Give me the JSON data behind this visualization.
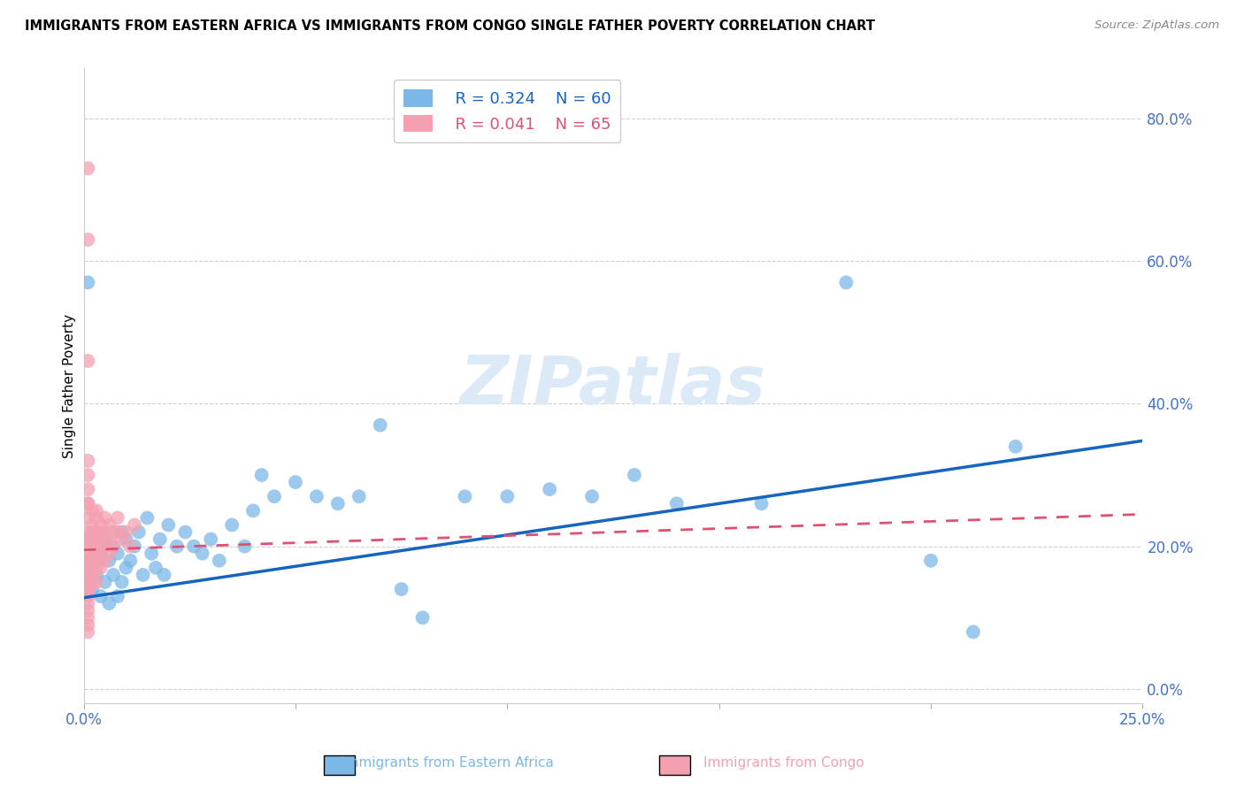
{
  "title": "IMMIGRANTS FROM EASTERN AFRICA VS IMMIGRANTS FROM CONGO SINGLE FATHER POVERTY CORRELATION CHART",
  "source": "Source: ZipAtlas.com",
  "ylabel": "Single Father Poverty",
  "right_yticks": [
    0.0,
    0.2,
    0.4,
    0.6,
    0.8
  ],
  "right_yticklabels": [
    "0.0%",
    "20.0%",
    "40.0%",
    "60.0%",
    "80.0%"
  ],
  "xlim": [
    0.0,
    0.25
  ],
  "ylim": [
    -0.02,
    0.87
  ],
  "series1_label": "Immigrants from Eastern Africa",
  "series1_R": "0.324",
  "series1_N": "60",
  "series1_color": "#7bb8e8",
  "series1_trend_color": "#1565c0",
  "series2_label": "Immigrants from Congo",
  "series2_R": "0.041",
  "series2_N": "65",
  "series2_color": "#f4a0b0",
  "series2_trend_color": "#e05070",
  "watermark": "ZIPatlas",
  "eastern_africa_x": [
    0.001,
    0.001,
    0.002,
    0.002,
    0.003,
    0.003,
    0.004,
    0.004,
    0.005,
    0.005,
    0.006,
    0.006,
    0.007,
    0.007,
    0.008,
    0.008,
    0.009,
    0.009,
    0.01,
    0.01,
    0.011,
    0.012,
    0.013,
    0.014,
    0.015,
    0.016,
    0.017,
    0.018,
    0.019,
    0.02,
    0.022,
    0.024,
    0.026,
    0.028,
    0.03,
    0.032,
    0.035,
    0.038,
    0.04,
    0.042,
    0.045,
    0.05,
    0.055,
    0.06,
    0.065,
    0.07,
    0.075,
    0.08,
    0.09,
    0.1,
    0.11,
    0.12,
    0.13,
    0.14,
    0.16,
    0.18,
    0.2,
    0.21,
    0.22,
    0.001
  ],
  "eastern_africa_y": [
    0.18,
    0.15,
    0.17,
    0.14,
    0.2,
    0.16,
    0.19,
    0.13,
    0.21,
    0.15,
    0.18,
    0.12,
    0.2,
    0.16,
    0.19,
    0.13,
    0.22,
    0.15,
    0.21,
    0.17,
    0.18,
    0.2,
    0.22,
    0.16,
    0.24,
    0.19,
    0.17,
    0.21,
    0.16,
    0.23,
    0.2,
    0.22,
    0.2,
    0.19,
    0.21,
    0.18,
    0.23,
    0.2,
    0.25,
    0.3,
    0.27,
    0.29,
    0.27,
    0.26,
    0.27,
    0.37,
    0.14,
    0.1,
    0.27,
    0.27,
    0.28,
    0.27,
    0.3,
    0.26,
    0.26,
    0.57,
    0.18,
    0.08,
    0.34,
    0.57
  ],
  "congo_x": [
    0.001,
    0.001,
    0.001,
    0.001,
    0.001,
    0.001,
    0.001,
    0.001,
    0.001,
    0.001,
    0.001,
    0.001,
    0.001,
    0.001,
    0.001,
    0.001,
    0.001,
    0.001,
    0.001,
    0.001,
    0.002,
    0.002,
    0.002,
    0.002,
    0.002,
    0.002,
    0.002,
    0.002,
    0.002,
    0.002,
    0.003,
    0.003,
    0.003,
    0.003,
    0.003,
    0.003,
    0.003,
    0.003,
    0.003,
    0.004,
    0.004,
    0.004,
    0.004,
    0.004,
    0.004,
    0.005,
    0.005,
    0.005,
    0.005,
    0.006,
    0.006,
    0.006,
    0.007,
    0.007,
    0.008,
    0.008,
    0.009,
    0.01,
    0.011,
    0.012,
    0.001,
    0.001,
    0.001,
    0.001,
    0.001
  ],
  "congo_y": [
    0.73,
    0.63,
    0.46,
    0.2,
    0.18,
    0.16,
    0.14,
    0.12,
    0.1,
    0.08,
    0.22,
    0.19,
    0.17,
    0.15,
    0.21,
    0.24,
    0.13,
    0.11,
    0.09,
    0.26,
    0.25,
    0.22,
    0.19,
    0.17,
    0.15,
    0.2,
    0.18,
    0.23,
    0.16,
    0.21,
    0.24,
    0.21,
    0.19,
    0.17,
    0.22,
    0.2,
    0.18,
    0.25,
    0.15,
    0.23,
    0.21,
    0.19,
    0.17,
    0.22,
    0.2,
    0.24,
    0.22,
    0.2,
    0.18,
    0.23,
    0.21,
    0.19,
    0.22,
    0.2,
    0.24,
    0.22,
    0.21,
    0.22,
    0.2,
    0.23,
    0.28,
    0.26,
    0.3,
    0.32,
    0.14
  ]
}
